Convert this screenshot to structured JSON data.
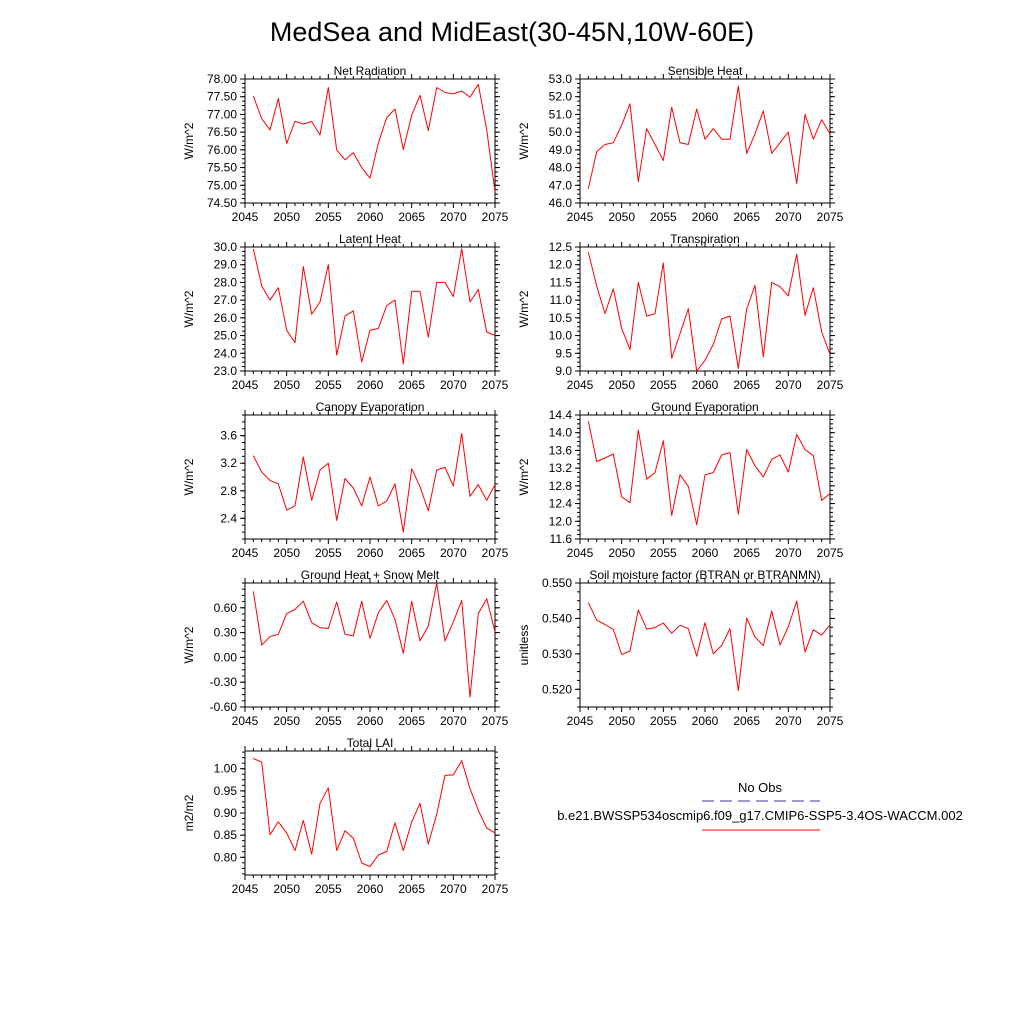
{
  "figure": {
    "title": "MedSea and MidEast(30-45N,10W-60E)"
  },
  "legend": {
    "obs_label": "No Obs",
    "model_label": "b.e21.BWSSP534oscmip6.f09_g17.CMIP6-SSP5-3.4OS-WACCM.002",
    "obs_color": "#3333aa",
    "model_color": "#ff0000"
  },
  "colors": {
    "series": "#ff0000",
    "axis": "#000000"
  },
  "chart_data": [
    {
      "type": "line",
      "title": "Net Radiation",
      "ylabel": "W/m^2",
      "xlim": [
        2045,
        2075
      ],
      "ylim": [
        74.5,
        78.0
      ],
      "xticks": [
        2045,
        2050,
        2055,
        2060,
        2065,
        2070,
        2075
      ],
      "yticks": [
        "74.50",
        "75.00",
        "75.50",
        "76.00",
        "76.50",
        "77.00",
        "77.50",
        "78.00"
      ],
      "x": [
        2046,
        2047,
        2048,
        2049,
        2050,
        2051,
        2052,
        2053,
        2054,
        2055,
        2056,
        2057,
        2058,
        2059,
        2060,
        2061,
        2062,
        2063,
        2064,
        2065,
        2066,
        2067,
        2068,
        2069,
        2070,
        2071,
        2072,
        2073,
        2074,
        2075
      ],
      "values": [
        77.52,
        76.88,
        76.56,
        77.45,
        76.18,
        76.81,
        76.73,
        76.8,
        76.42,
        77.76,
        76.0,
        75.72,
        75.92,
        75.5,
        75.2,
        76.19,
        76.91,
        77.15,
        76.01,
        76.98,
        77.54,
        76.54,
        77.76,
        77.62,
        77.58,
        77.66,
        77.49,
        77.85,
        76.57,
        74.82
      ]
    },
    {
      "type": "line",
      "title": "Sensible Heat",
      "ylabel": "W/m^2",
      "xlim": [
        2045,
        2075
      ],
      "ylim": [
        46.0,
        53.0
      ],
      "xticks": [
        2045,
        2050,
        2055,
        2060,
        2065,
        2070,
        2075
      ],
      "yticks": [
        "46.0",
        "47.0",
        "48.0",
        "49.0",
        "50.0",
        "51.0",
        "52.0",
        "53.0"
      ],
      "x": [
        2046,
        2047,
        2048,
        2049,
        2050,
        2051,
        2052,
        2053,
        2054,
        2055,
        2056,
        2057,
        2058,
        2059,
        2060,
        2061,
        2062,
        2063,
        2064,
        2065,
        2066,
        2067,
        2068,
        2069,
        2070,
        2071,
        2072,
        2073,
        2074,
        2075
      ],
      "values": [
        46.8,
        48.9,
        49.3,
        49.4,
        50.4,
        51.6,
        47.2,
        50.2,
        49.3,
        48.4,
        51.4,
        49.4,
        49.3,
        51.3,
        49.6,
        50.2,
        49.6,
        49.6,
        52.6,
        48.8,
        49.9,
        51.2,
        48.8,
        49.4,
        50.0,
        47.1,
        51.0,
        49.6,
        50.7,
        49.9
      ]
    },
    {
      "type": "line",
      "title": "Latent Heat",
      "ylabel": "W/m^2",
      "xlim": [
        2045,
        2075
      ],
      "ylim": [
        23.0,
        30.0
      ],
      "xticks": [
        2045,
        2050,
        2055,
        2060,
        2065,
        2070,
        2075
      ],
      "yticks": [
        "23.0",
        "24.0",
        "25.0",
        "26.0",
        "27.0",
        "28.0",
        "29.0",
        "30.0"
      ],
      "x": [
        2046,
        2047,
        2048,
        2049,
        2050,
        2051,
        2052,
        2053,
        2054,
        2055,
        2056,
        2057,
        2058,
        2059,
        2060,
        2061,
        2062,
        2063,
        2064,
        2065,
        2066,
        2067,
        2068,
        2069,
        2070,
        2071,
        2072,
        2073,
        2074,
        2075
      ],
      "values": [
        29.9,
        27.8,
        27.0,
        27.7,
        25.3,
        24.6,
        28.9,
        26.2,
        26.9,
        29.0,
        23.9,
        26.1,
        26.4,
        23.5,
        25.3,
        25.4,
        26.7,
        27.0,
        23.4,
        27.5,
        27.5,
        24.9,
        28.0,
        28.0,
        27.2,
        29.9,
        26.9,
        27.6,
        25.2,
        25.0
      ]
    },
    {
      "type": "line",
      "title": "Transpiration",
      "ylabel": "W/m^2",
      "xlim": [
        2045,
        2075
      ],
      "ylim": [
        9.0,
        12.5
      ],
      "xticks": [
        2045,
        2050,
        2055,
        2060,
        2065,
        2070,
        2075
      ],
      "yticks": [
        "9.0",
        "9.5",
        "10.0",
        "10.5",
        "11.0",
        "11.5",
        "12.0",
        "12.5"
      ],
      "x": [
        2046,
        2047,
        2048,
        2049,
        2050,
        2051,
        2052,
        2053,
        2054,
        2055,
        2056,
        2057,
        2058,
        2059,
        2060,
        2061,
        2062,
        2063,
        2064,
        2065,
        2066,
        2067,
        2068,
        2069,
        2070,
        2071,
        2072,
        2073,
        2074,
        2075
      ],
      "values": [
        12.35,
        11.4,
        10.62,
        11.32,
        10.2,
        9.6,
        11.5,
        10.55,
        10.62,
        12.05,
        9.36,
        10.05,
        10.76,
        9.0,
        9.3,
        9.75,
        10.47,
        10.55,
        9.07,
        10.75,
        11.42,
        9.4,
        11.5,
        11.38,
        11.12,
        12.3,
        10.57,
        11.35,
        10.1,
        9.47
      ]
    },
    {
      "type": "line",
      "title": "Canopy Evaporation",
      "ylabel": "W/m^2",
      "xlim": [
        2045,
        2075
      ],
      "ylim": [
        2.1,
        3.9
      ],
      "xticks": [
        2045,
        2050,
        2055,
        2060,
        2065,
        2070,
        2075
      ],
      "yticks": [
        "2.4",
        "2.8",
        "3.2",
        "3.6"
      ],
      "ytick_values": [
        2.4,
        2.8,
        3.2,
        3.6
      ],
      "x": [
        2046,
        2047,
        2048,
        2049,
        2050,
        2051,
        2052,
        2053,
        2054,
        2055,
        2056,
        2057,
        2058,
        2059,
        2060,
        2061,
        2062,
        2063,
        2064,
        2065,
        2066,
        2067,
        2068,
        2069,
        2070,
        2071,
        2072,
        2073,
        2074,
        2075
      ],
      "values": [
        3.31,
        3.07,
        2.95,
        2.9,
        2.52,
        2.58,
        3.29,
        2.66,
        3.1,
        3.2,
        2.37,
        2.98,
        2.84,
        2.58,
        3.0,
        2.58,
        2.65,
        2.9,
        2.2,
        3.12,
        2.86,
        2.51,
        3.1,
        3.14,
        2.87,
        3.63,
        2.72,
        2.89,
        2.66,
        2.89
      ]
    },
    {
      "type": "line",
      "title": "Ground Evaporation",
      "ylabel": "W/m^2",
      "xlim": [
        2045,
        2075
      ],
      "ylim": [
        11.6,
        14.4
      ],
      "xticks": [
        2045,
        2050,
        2055,
        2060,
        2065,
        2070,
        2075
      ],
      "yticks": [
        "11.6",
        "12.0",
        "12.4",
        "12.8",
        "13.2",
        "13.6",
        "14.0",
        "14.4"
      ],
      "x": [
        2046,
        2047,
        2048,
        2049,
        2050,
        2051,
        2052,
        2053,
        2054,
        2055,
        2056,
        2057,
        2058,
        2059,
        2060,
        2061,
        2062,
        2063,
        2064,
        2065,
        2066,
        2067,
        2068,
        2069,
        2070,
        2071,
        2072,
        2073,
        2074,
        2075
      ],
      "values": [
        14.26,
        13.35,
        13.43,
        13.52,
        12.55,
        12.42,
        14.06,
        12.95,
        13.1,
        13.82,
        12.13,
        13.05,
        12.79,
        11.92,
        13.05,
        13.1,
        13.5,
        13.55,
        12.16,
        13.62,
        13.25,
        13.0,
        13.4,
        13.5,
        13.11,
        13.96,
        13.62,
        13.48,
        12.47,
        12.63
      ]
    },
    {
      "type": "line",
      "title": "Ground Heat + Snow Melt",
      "ylabel": "W/m^2",
      "xlim": [
        2045,
        2075
      ],
      "ylim": [
        -0.6,
        0.9
      ],
      "xticks": [
        2045,
        2050,
        2055,
        2060,
        2065,
        2070,
        2075
      ],
      "yticks": [
        "-0.60",
        "-0.30",
        "0.00",
        "0.30",
        "0.60"
      ],
      "ytick_values": [
        -0.6,
        -0.3,
        0.0,
        0.3,
        0.6
      ],
      "x": [
        2046,
        2047,
        2048,
        2049,
        2050,
        2051,
        2052,
        2053,
        2054,
        2055,
        2056,
        2057,
        2058,
        2059,
        2060,
        2061,
        2062,
        2063,
        2064,
        2065,
        2066,
        2067,
        2068,
        2069,
        2070,
        2071,
        2072,
        2073,
        2074,
        2075
      ],
      "values": [
        0.8,
        0.15,
        0.25,
        0.28,
        0.53,
        0.58,
        0.68,
        0.42,
        0.36,
        0.35,
        0.67,
        0.28,
        0.26,
        0.68,
        0.23,
        0.54,
        0.69,
        0.46,
        0.05,
        0.68,
        0.2,
        0.38,
        0.9,
        0.2,
        0.43,
        0.69,
        -0.48,
        0.53,
        0.71,
        0.31
      ]
    },
    {
      "type": "line",
      "title": "Soil moisture factor (BTRAN or BTRANMN)",
      "ylabel": "unitless",
      "xlim": [
        2045,
        2075
      ],
      "ylim": [
        0.515,
        0.55
      ],
      "xticks": [
        2045,
        2050,
        2055,
        2060,
        2065,
        2070,
        2075
      ],
      "yticks": [
        "0.520",
        "0.530",
        "0.540",
        "0.550"
      ],
      "ytick_values": [
        0.52,
        0.53,
        0.54,
        0.55
      ],
      "x": [
        2046,
        2047,
        2048,
        2049,
        2050,
        2051,
        2052,
        2053,
        2054,
        2055,
        2056,
        2057,
        2058,
        2059,
        2060,
        2061,
        2062,
        2063,
        2064,
        2065,
        2066,
        2067,
        2068,
        2069,
        2070,
        2071,
        2072,
        2073,
        2074,
        2075
      ],
      "values": [
        0.5445,
        0.5395,
        0.5383,
        0.5369,
        0.5298,
        0.5308,
        0.5424,
        0.537,
        0.5374,
        0.5387,
        0.5358,
        0.5381,
        0.5371,
        0.5293,
        0.5388,
        0.53,
        0.5324,
        0.5371,
        0.5196,
        0.5401,
        0.5348,
        0.5323,
        0.5421,
        0.5325,
        0.5377,
        0.5449,
        0.5305,
        0.5368,
        0.5353,
        0.5382
      ]
    },
    {
      "type": "line",
      "title": "Total LAI",
      "ylabel": "m2/m2",
      "xlim": [
        2045,
        2075
      ],
      "ylim": [
        0.76,
        1.04
      ],
      "xticks": [
        2045,
        2050,
        2055,
        2060,
        2065,
        2070,
        2075
      ],
      "yticks": [
        "0.80",
        "0.85",
        "0.90",
        "0.95",
        "1.00"
      ],
      "ytick_values": [
        0.8,
        0.85,
        0.9,
        0.95,
        1.0
      ],
      "x": [
        2046,
        2047,
        2048,
        2049,
        2050,
        2051,
        2052,
        2053,
        2054,
        2055,
        2056,
        2057,
        2058,
        2059,
        2060,
        2061,
        2062,
        2063,
        2064,
        2065,
        2066,
        2067,
        2068,
        2069,
        2070,
        2071,
        2072,
        2073,
        2074,
        2075
      ],
      "values": [
        1.023,
        1.015,
        0.851,
        0.88,
        0.855,
        0.815,
        0.883,
        0.807,
        0.922,
        0.957,
        0.815,
        0.86,
        0.843,
        0.787,
        0.779,
        0.805,
        0.813,
        0.878,
        0.815,
        0.88,
        0.922,
        0.83,
        0.897,
        0.985,
        0.986,
        1.018,
        0.955,
        0.906,
        0.866,
        0.855
      ]
    }
  ]
}
